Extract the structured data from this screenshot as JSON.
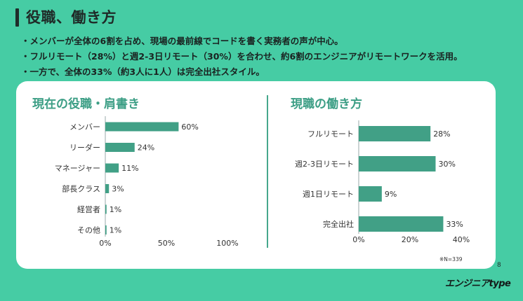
{
  "page": {
    "title": "役職、働き方",
    "bullets": [
      "メンバーが全体の6割を占め、現場の最前線でコードを書く実務者の声が中心。",
      "フルリモート（28%）と週2-3日リモート（30%）を合わせ、約6割のエンジニアがリモートワークを活用。",
      "一方で、全体の33%（約3人に1人）は完全出社スタイル。"
    ],
    "note": "※N=339",
    "page_number": "8",
    "logo_text": "エンジニアtype"
  },
  "colors": {
    "bar": "#41a086",
    "background": "#46cca4",
    "title_accent": "#3c9e85"
  },
  "chart_data": [
    {
      "type": "bar",
      "orientation": "horizontal",
      "title": "現在の役職・肩書き",
      "categories": [
        "メンバー",
        "リーダー",
        "マネージャー",
        "部長クラス",
        "経営者",
        "その他"
      ],
      "values": [
        60,
        24,
        11,
        3,
        1,
        1
      ],
      "value_labels": [
        "60%",
        "24%",
        "11%",
        "3%",
        "1%",
        "1%"
      ],
      "xlim": [
        0,
        100
      ],
      "xticks": [
        "0%",
        "50%",
        "100%"
      ],
      "grid": false
    },
    {
      "type": "bar",
      "orientation": "horizontal",
      "title": "現職の働き方",
      "categories": [
        "フルリモート",
        "週2-3日リモート",
        "週1日リモート",
        "完全出社"
      ],
      "values": [
        28,
        30,
        9,
        33
      ],
      "value_labels": [
        "28%",
        "30%",
        "9%",
        "33%"
      ],
      "xlim": [
        0,
        40
      ],
      "xticks": [
        "0%",
        "20%",
        "40%"
      ],
      "grid": false
    }
  ]
}
